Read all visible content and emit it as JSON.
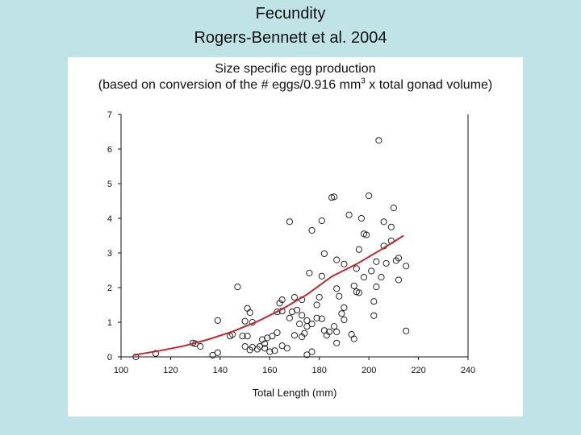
{
  "slide": {
    "title_line1": "Fecundity",
    "title_line2": "Rogers-Bennett et al. 2004",
    "background_color": "#bfe3e6"
  },
  "chart_data": {
    "type": "scatter",
    "title": "Size specific egg production",
    "subtitle_before_sup": "(based on conversion of the # eggs/0.916 mm",
    "subtitle_sup": "3",
    "subtitle_after_sup": " x total gonad volume)",
    "xlabel": "Total Length (mm)",
    "ylabel": "",
    "xlim": [
      100,
      240
    ],
    "ylim": [
      0,
      7
    ],
    "x_ticks": [
      "100",
      "120",
      "140",
      "160",
      "180",
      "200",
      "220",
      "240"
    ],
    "y_ticks": [
      "0",
      "1",
      "2",
      "3",
      "4",
      "5",
      "6",
      "7"
    ],
    "grid": false,
    "marker": "open circle",
    "point_color": "#111111",
    "curve_color": "#c0282d",
    "points": [
      [
        106,
        0.0
      ],
      [
        114,
        0.1
      ],
      [
        129,
        0.4
      ],
      [
        130,
        0.38
      ],
      [
        132,
        0.3
      ],
      [
        137,
        0.05
      ],
      [
        139,
        0.12
      ],
      [
        139,
        1.05
      ],
      [
        144,
        0.6
      ],
      [
        145,
        0.65
      ],
      [
        147,
        2.02
      ],
      [
        149,
        0.6
      ],
      [
        150,
        0.3
      ],
      [
        150,
        1.03
      ],
      [
        151,
        1.4
      ],
      [
        151,
        0.6
      ],
      [
        152,
        0.2
      ],
      [
        152,
        1.28
      ],
      [
        153,
        1.0
      ],
      [
        153,
        0.28
      ],
      [
        155,
        0.22
      ],
      [
        156,
        0.3
      ],
      [
        157,
        0.5
      ],
      [
        158,
        0.38
      ],
      [
        158,
        0.25
      ],
      [
        159,
        0.55
      ],
      [
        160,
        0.15
      ],
      [
        161,
        0.6
      ],
      [
        162,
        0.18
      ],
      [
        163,
        1.3
      ],
      [
        163,
        0.7
      ],
      [
        164,
        1.55
      ],
      [
        165,
        1.65
      ],
      [
        165,
        1.32
      ],
      [
        165,
        0.32
      ],
      [
        167,
        0.25
      ],
      [
        168,
        3.9
      ],
      [
        168,
        1.12
      ],
      [
        169,
        1.3
      ],
      [
        170,
        1.72
      ],
      [
        170,
        0.62
      ],
      [
        171,
        1.35
      ],
      [
        172,
        0.95
      ],
      [
        173,
        1.65
      ],
      [
        173,
        1.2
      ],
      [
        173,
        0.58
      ],
      [
        174,
        0.68
      ],
      [
        175,
        1.05
      ],
      [
        175,
        0.88
      ],
      [
        175,
        0.06
      ],
      [
        176,
        2.42
      ],
      [
        177,
        3.65
      ],
      [
        177,
        0.95
      ],
      [
        177,
        0.15
      ],
      [
        179,
        1.12
      ],
      [
        179,
        1.5
      ],
      [
        180,
        1.72
      ],
      [
        181,
        1.1
      ],
      [
        181,
        2.33
      ],
      [
        181,
        3.93
      ],
      [
        182,
        2.98
      ],
      [
        182,
        0.76
      ],
      [
        183,
        0.62
      ],
      [
        184,
        0.72
      ],
      [
        185,
        4.6
      ],
      [
        186,
        4.62
      ],
      [
        186,
        0.88
      ],
      [
        187,
        2.8
      ],
      [
        187,
        1.97
      ],
      [
        187,
        0.72
      ],
      [
        187,
        0.4
      ],
      [
        188,
        1.75
      ],
      [
        189,
        1.25
      ],
      [
        190,
        2.68
      ],
      [
        190,
        1.42
      ],
      [
        190,
        1.07
      ],
      [
        192,
        4.1
      ],
      [
        193,
        0.65
      ],
      [
        194,
        2.05
      ],
      [
        194,
        0.52
      ],
      [
        195,
        2.55
      ],
      [
        195,
        1.88
      ],
      [
        196,
        3.1
      ],
      [
        196,
        1.85
      ],
      [
        197,
        4.0
      ],
      [
        198,
        3.55
      ],
      [
        198,
        2.3
      ],
      [
        199,
        3.52
      ],
      [
        200,
        4.65
      ],
      [
        201,
        2.48
      ],
      [
        202,
        1.6
      ],
      [
        202,
        1.19
      ],
      [
        203,
        2.02
      ],
      [
        203,
        2.75
      ],
      [
        204,
        6.25
      ],
      [
        205,
        2.3
      ],
      [
        206,
        3.9
      ],
      [
        206,
        3.2
      ],
      [
        207,
        2.7
      ],
      [
        209,
        3.75
      ],
      [
        209,
        3.35
      ],
      [
        210,
        4.3
      ],
      [
        211,
        2.78
      ],
      [
        212,
        2.85
      ],
      [
        212,
        2.22
      ],
      [
        215,
        2.62
      ],
      [
        215,
        0.75
      ]
    ],
    "curve": [
      [
        105,
        0.05
      ],
      [
        115,
        0.17
      ],
      [
        125,
        0.31
      ],
      [
        135,
        0.5
      ],
      [
        145,
        0.73
      ],
      [
        155,
        1.02
      ],
      [
        165,
        1.38
      ],
      [
        175,
        1.8
      ],
      [
        185,
        2.32
      ],
      [
        195,
        2.68
      ],
      [
        205,
        3.1
      ],
      [
        214,
        3.5
      ]
    ]
  }
}
